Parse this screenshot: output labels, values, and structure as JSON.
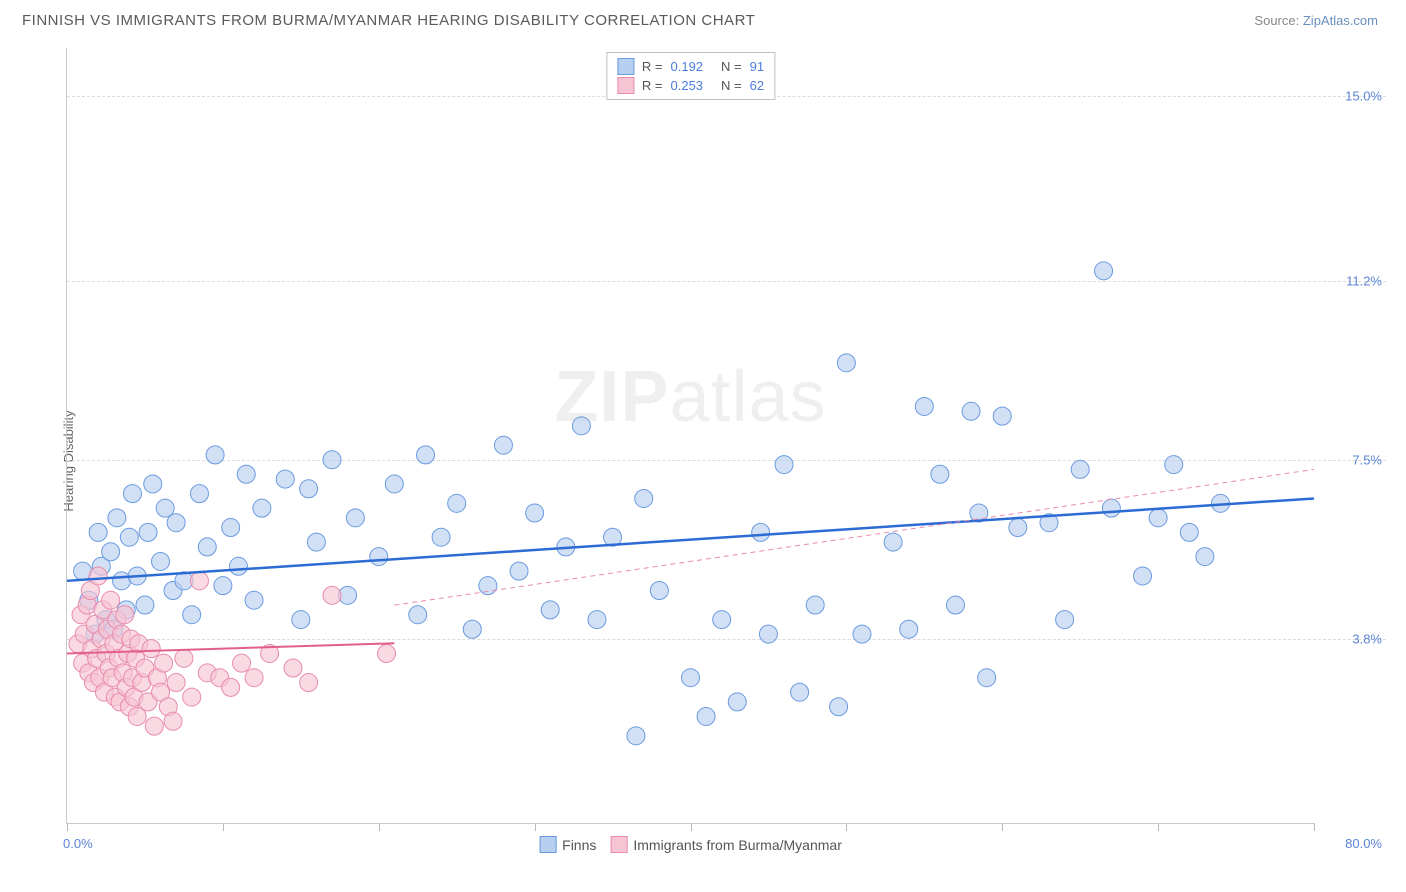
{
  "title": "FINNISH VS IMMIGRANTS FROM BURMA/MYANMAR HEARING DISABILITY CORRELATION CHART",
  "source_label": "Source:",
  "source_name": "ZipAtlas.com",
  "ylabel": "Hearing Disability",
  "watermark": {
    "bold": "ZIP",
    "rest": "atlas"
  },
  "chart": {
    "type": "scatter",
    "xlim": [
      0,
      80
    ],
    "ylim": [
      0,
      16
    ],
    "xtick_step": 10,
    "ytick_values": [
      3.8,
      7.5,
      11.2,
      15.0
    ],
    "x_axis_start_label": "0.0%",
    "x_axis_end_label": "80.0%",
    "grid_color": "#dcdcdc",
    "background_color": "#ffffff",
    "marker_radius": 9,
    "series": [
      {
        "name": "Finns",
        "fill": "#b8d0f0",
        "stroke": "#6b9ae0",
        "fill_opacity": 0.65,
        "R": "0.192",
        "N": "91",
        "trend": {
          "y_at_x0": 5.0,
          "y_at_x80": 6.7,
          "color": "#2d6bd4",
          "width": 2.5,
          "dash": ""
        },
        "trend_ext": null,
        "points": [
          [
            1.0,
            5.2
          ],
          [
            1.4,
            4.6
          ],
          [
            1.8,
            3.9
          ],
          [
            2.0,
            6.0
          ],
          [
            2.2,
            5.3
          ],
          [
            2.5,
            4.2
          ],
          [
            2.8,
            5.6
          ],
          [
            3.0,
            4.0
          ],
          [
            3.2,
            6.3
          ],
          [
            3.5,
            5.0
          ],
          [
            3.8,
            4.4
          ],
          [
            4.0,
            5.9
          ],
          [
            4.2,
            6.8
          ],
          [
            4.5,
            5.1
          ],
          [
            5.0,
            4.5
          ],
          [
            5.2,
            6.0
          ],
          [
            5.5,
            7.0
          ],
          [
            6.0,
            5.4
          ],
          [
            6.3,
            6.5
          ],
          [
            6.8,
            4.8
          ],
          [
            7.0,
            6.2
          ],
          [
            7.5,
            5.0
          ],
          [
            8.0,
            4.3
          ],
          [
            8.5,
            6.8
          ],
          [
            9.0,
            5.7
          ],
          [
            9.5,
            7.6
          ],
          [
            10.0,
            4.9
          ],
          [
            10.5,
            6.1
          ],
          [
            11.0,
            5.3
          ],
          [
            11.5,
            7.2
          ],
          [
            12.0,
            4.6
          ],
          [
            12.5,
            6.5
          ],
          [
            14.0,
            7.1
          ],
          [
            15.0,
            4.2
          ],
          [
            15.5,
            6.9
          ],
          [
            16.0,
            5.8
          ],
          [
            17.0,
            7.5
          ],
          [
            18.0,
            4.7
          ],
          [
            18.5,
            6.3
          ],
          [
            20.0,
            5.5
          ],
          [
            21.0,
            7.0
          ],
          [
            22.5,
            4.3
          ],
          [
            23.0,
            7.6
          ],
          [
            24.0,
            5.9
          ],
          [
            25.0,
            6.6
          ],
          [
            26.0,
            4.0
          ],
          [
            27.0,
            4.9
          ],
          [
            28.0,
            7.8
          ],
          [
            29.0,
            5.2
          ],
          [
            30.0,
            6.4
          ],
          [
            31.0,
            4.4
          ],
          [
            32.0,
            5.7
          ],
          [
            33.0,
            8.2
          ],
          [
            34.0,
            4.2
          ],
          [
            35.0,
            5.9
          ],
          [
            36.5,
            1.8
          ],
          [
            37.0,
            6.7
          ],
          [
            38.0,
            4.8
          ],
          [
            40.0,
            3.0
          ],
          [
            41.0,
            2.2
          ],
          [
            42.0,
            4.2
          ],
          [
            43.0,
            2.5
          ],
          [
            44.5,
            6.0
          ],
          [
            45.0,
            3.9
          ],
          [
            46.0,
            7.4
          ],
          [
            47.0,
            2.7
          ],
          [
            48.0,
            4.5
          ],
          [
            49.5,
            2.4
          ],
          [
            50.0,
            9.5
          ],
          [
            51.0,
            3.9
          ],
          [
            53.0,
            5.8
          ],
          [
            54.0,
            4.0
          ],
          [
            55.0,
            8.6
          ],
          [
            56.0,
            7.2
          ],
          [
            57.0,
            4.5
          ],
          [
            58.0,
            8.5
          ],
          [
            58.5,
            6.4
          ],
          [
            59.0,
            3.0
          ],
          [
            60.0,
            8.4
          ],
          [
            61.0,
            6.1
          ],
          [
            63.0,
            6.2
          ],
          [
            64.0,
            4.2
          ],
          [
            65.0,
            7.3
          ],
          [
            66.5,
            11.4
          ],
          [
            67.0,
            6.5
          ],
          [
            69.0,
            5.1
          ],
          [
            70.0,
            6.3
          ],
          [
            71.0,
            7.4
          ],
          [
            72.0,
            6.0
          ],
          [
            73.0,
            5.5
          ],
          [
            74.0,
            6.6
          ]
        ]
      },
      {
        "name": "Immigrants from Burma/Myanmar",
        "fill": "#f6c5d3",
        "stroke": "#e88bac",
        "fill_opacity": 0.65,
        "R": "0.253",
        "N": "62",
        "trend": {
          "y_at_x0": 3.5,
          "y_at_x80": 4.3,
          "x_end": 21,
          "color": "#e15e8e",
          "width": 2,
          "dash": ""
        },
        "trend_ext": {
          "y_at_x0": 3.5,
          "y_at_x80": 7.3,
          "x_start": 21,
          "color": "#e88bac",
          "width": 1,
          "dash": "5,4"
        },
        "points": [
          [
            0.7,
            3.7
          ],
          [
            0.9,
            4.3
          ],
          [
            1.0,
            3.3
          ],
          [
            1.1,
            3.9
          ],
          [
            1.3,
            4.5
          ],
          [
            1.4,
            3.1
          ],
          [
            1.5,
            4.8
          ],
          [
            1.6,
            3.6
          ],
          [
            1.7,
            2.9
          ],
          [
            1.8,
            4.1
          ],
          [
            1.9,
            3.4
          ],
          [
            2.0,
            5.1
          ],
          [
            2.1,
            3.0
          ],
          [
            2.2,
            3.8
          ],
          [
            2.3,
            4.4
          ],
          [
            2.4,
            2.7
          ],
          [
            2.5,
            3.5
          ],
          [
            2.6,
            4.0
          ],
          [
            2.7,
            3.2
          ],
          [
            2.8,
            4.6
          ],
          [
            2.9,
            3.0
          ],
          [
            3.0,
            3.7
          ],
          [
            3.1,
            2.6
          ],
          [
            3.2,
            4.2
          ],
          [
            3.3,
            3.4
          ],
          [
            3.4,
            2.5
          ],
          [
            3.5,
            3.9
          ],
          [
            3.6,
            3.1
          ],
          [
            3.7,
            4.3
          ],
          [
            3.8,
            2.8
          ],
          [
            3.9,
            3.5
          ],
          [
            4.0,
            2.4
          ],
          [
            4.1,
            3.8
          ],
          [
            4.2,
            3.0
          ],
          [
            4.3,
            2.6
          ],
          [
            4.4,
            3.4
          ],
          [
            4.5,
            2.2
          ],
          [
            4.6,
            3.7
          ],
          [
            4.8,
            2.9
          ],
          [
            5.0,
            3.2
          ],
          [
            5.2,
            2.5
          ],
          [
            5.4,
            3.6
          ],
          [
            5.6,
            2.0
          ],
          [
            5.8,
            3.0
          ],
          [
            6.0,
            2.7
          ],
          [
            6.2,
            3.3
          ],
          [
            6.5,
            2.4
          ],
          [
            6.8,
            2.1
          ],
          [
            7.0,
            2.9
          ],
          [
            7.5,
            3.4
          ],
          [
            8.0,
            2.6
          ],
          [
            8.5,
            5.0
          ],
          [
            9.0,
            3.1
          ],
          [
            9.8,
            3.0
          ],
          [
            10.5,
            2.8
          ],
          [
            11.2,
            3.3
          ],
          [
            12.0,
            3.0
          ],
          [
            13.0,
            3.5
          ],
          [
            14.5,
            3.2
          ],
          [
            15.5,
            2.9
          ],
          [
            17.0,
            4.7
          ],
          [
            20.5,
            3.5
          ]
        ]
      }
    ]
  },
  "legend_top_labels": {
    "R": "R  =",
    "N": "N  ="
  },
  "legend_bottom": [
    "Finns",
    "Immigrants from Burma/Myanmar"
  ]
}
